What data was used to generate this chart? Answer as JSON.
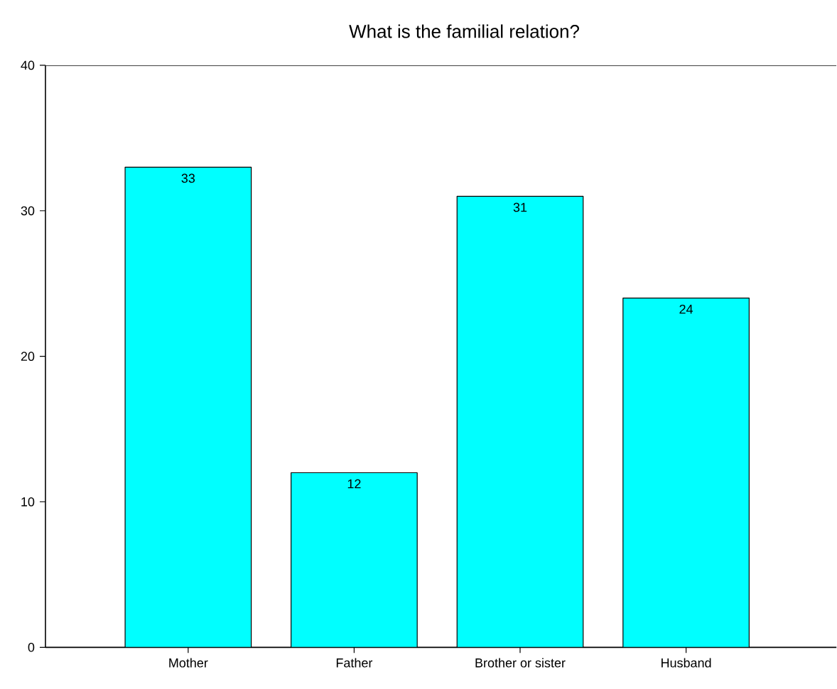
{
  "chart_data": {
    "type": "bar",
    "title": "What is the familial relation?",
    "categories": [
      "Mother",
      "Father",
      "Brother or sister",
      "Husband"
    ],
    "values": [
      33,
      12,
      31,
      24
    ],
    "color": "#00ffff",
    "ylim": [
      0,
      40
    ],
    "yticks": [
      0,
      10,
      20,
      30,
      40
    ],
    "data_labels": true,
    "grid": false
  }
}
